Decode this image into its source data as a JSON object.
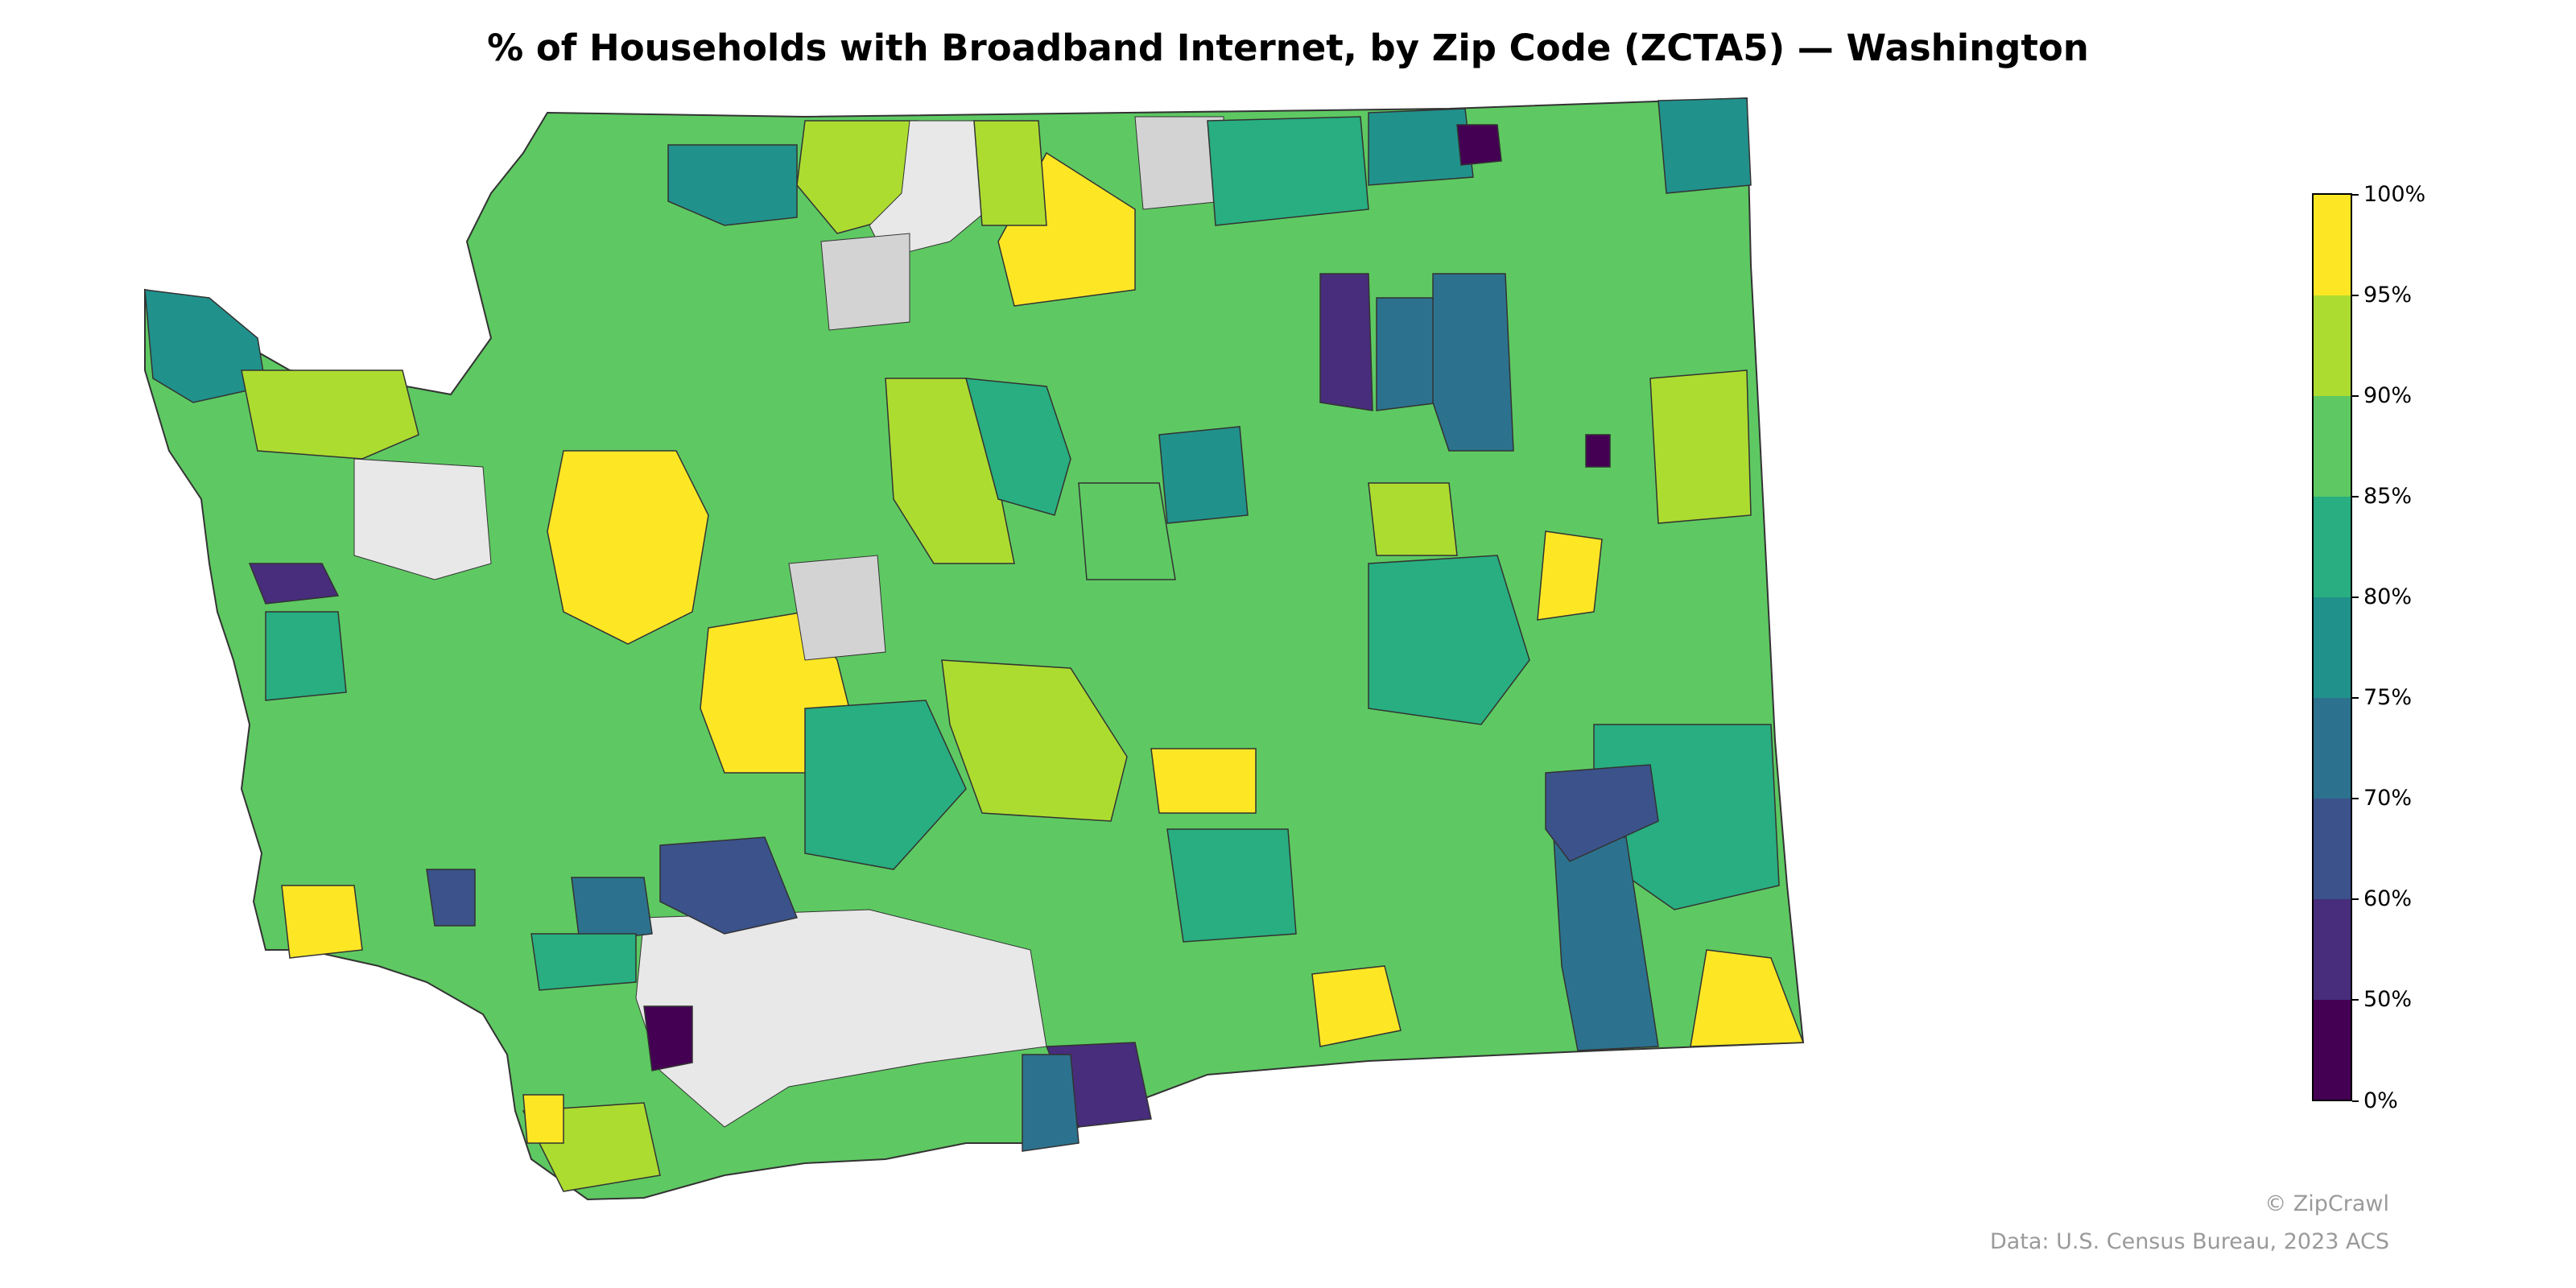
{
  "title": "% of Households with Broadband Internet, by Zip Code (ZCTA5) — Washington",
  "colorbar": {
    "ticks": [
      "0%",
      "50%",
      "60%",
      "70%",
      "75%",
      "80%",
      "85%",
      "90%",
      "95%",
      "100%"
    ],
    "bins": [
      {
        "label": "0%",
        "color": "#440154"
      },
      {
        "label": "50%",
        "color": "#472d7b"
      },
      {
        "label": "60%",
        "color": "#3b528b"
      },
      {
        "label": "70%",
        "color": "#2c728e"
      },
      {
        "label": "75%",
        "color": "#21918c"
      },
      {
        "label": "80%",
        "color": "#28ae80"
      },
      {
        "label": "85%",
        "color": "#5ec962"
      },
      {
        "label": "90%",
        "color": "#addc30"
      },
      {
        "label": "95%",
        "color": "#fde725"
      }
    ],
    "no_data_color": "#d3d3d3",
    "outside_color": "#e8e8e8"
  },
  "credits": {
    "line1": "© ZipCrawl",
    "line2": "Data: U.S. Census Bureau, 2023 ACS"
  }
}
